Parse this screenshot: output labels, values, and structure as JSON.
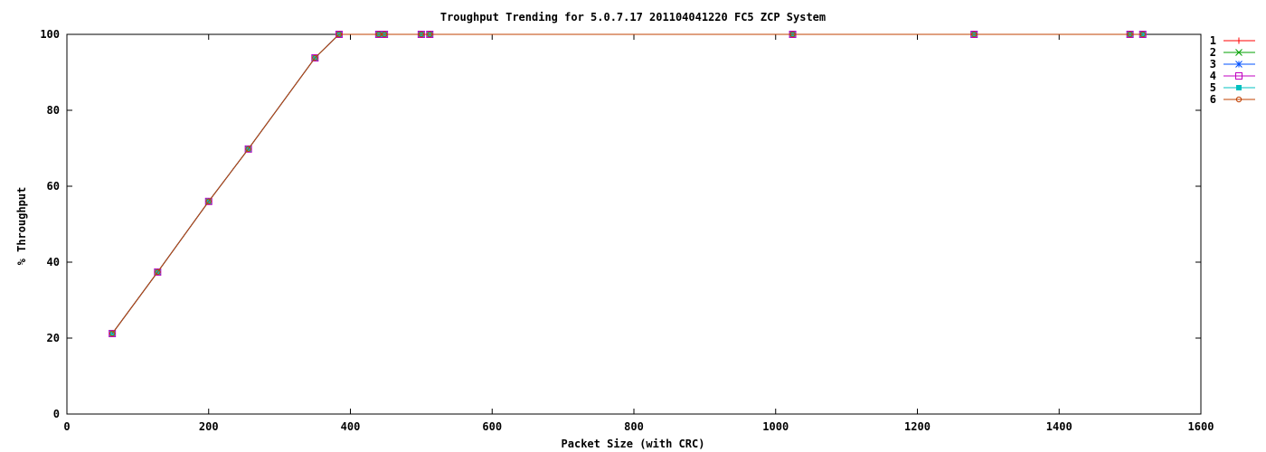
{
  "chart_data": {
    "type": "line",
    "title": "Troughput Trending for 5.0.7.17 201104041220 FC5 ZCP System",
    "xlabel": "Packet Size (with CRC)",
    "ylabel": "% Throughput",
    "xlim": [
      0,
      1600
    ],
    "ylim": [
      0,
      100
    ],
    "x_ticks": [
      "0",
      "200",
      "400",
      "600",
      "800",
      "1000",
      "1200",
      "1400",
      "1600"
    ],
    "y_ticks": [
      "0",
      "20",
      "40",
      "60",
      "80",
      "100"
    ],
    "grid": false,
    "legend_position": "right",
    "x": [
      64,
      128,
      200,
      256,
      350,
      384,
      440,
      448,
      500,
      512,
      1024,
      1280,
      1500,
      1518
    ],
    "series": [
      {
        "name": "1",
        "color": "#ff0000",
        "marker": "plus",
        "values": [
          21.2,
          37.4,
          56.0,
          69.8,
          93.8,
          100,
          100,
          100,
          100,
          100,
          100,
          100,
          100,
          100
        ]
      },
      {
        "name": "2",
        "color": "#00a000",
        "marker": "cross",
        "values": [
          21.2,
          37.4,
          56.0,
          69.8,
          93.8,
          100,
          100,
          100,
          100,
          100,
          100,
          100,
          100,
          100
        ]
      },
      {
        "name": "3",
        "color": "#0050ff",
        "marker": "star",
        "values": [
          21.2,
          37.4,
          56.0,
          69.8,
          93.8,
          100,
          100,
          100,
          100,
          100,
          100,
          100,
          100,
          100
        ]
      },
      {
        "name": "4",
        "color": "#c000c0",
        "marker": "square-open",
        "values": [
          21.2,
          37.4,
          56.0,
          69.8,
          93.8,
          100,
          100,
          100,
          100,
          100,
          100,
          100,
          100,
          100
        ]
      },
      {
        "name": "5",
        "color": "#00c0c0",
        "marker": "square-fill",
        "values": [
          21.2,
          37.4,
          56.0,
          69.8,
          93.8,
          100,
          100,
          100,
          100,
          100,
          100,
          100,
          100,
          100
        ]
      },
      {
        "name": "6",
        "color": "#c04000",
        "marker": "circle-open",
        "values": [
          21.2,
          37.4,
          56.0,
          69.8,
          93.8,
          100,
          100,
          100,
          100,
          100,
          100,
          100,
          100,
          100
        ]
      }
    ]
  }
}
